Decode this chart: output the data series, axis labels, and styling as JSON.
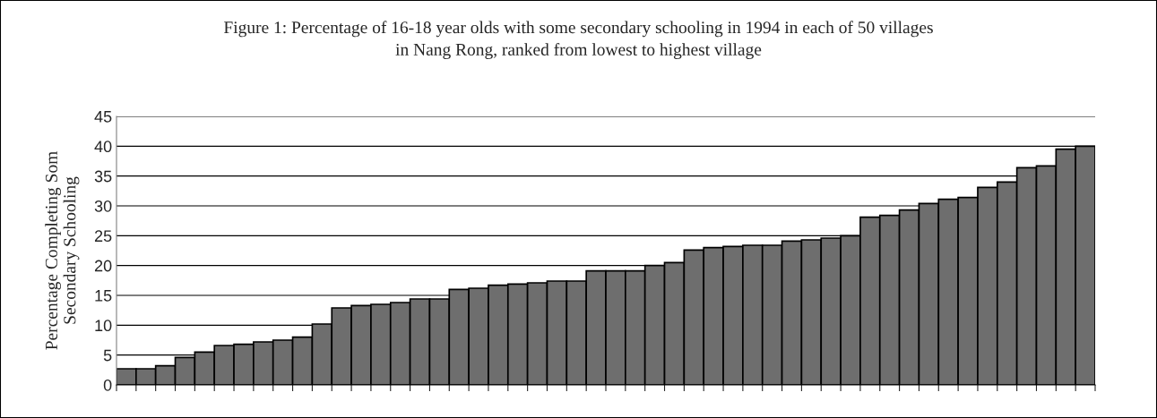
{
  "chart_data": {
    "type": "bar",
    "title": "Figure 1: Percentage of 16-18 year olds with some secondary schooling in 1994 in each of 50 villages\nin Nang Rong, ranked from lowest to highest village",
    "ylabel": "Percentage Completing Som\nSecondary Schooling",
    "categories": [
      null,
      null,
      null,
      null,
      null,
      null,
      null,
      null,
      null,
      null,
      null,
      null,
      null,
      null,
      null,
      null,
      null,
      null,
      null,
      null,
      null,
      null,
      null,
      null,
      null,
      null,
      null,
      null,
      null,
      null,
      null,
      null,
      null,
      null,
      null,
      null,
      null,
      null,
      null,
      null,
      null,
      null,
      null,
      null,
      null,
      null,
      null,
      null,
      null,
      null
    ],
    "values": [
      2.7,
      2.7,
      3.2,
      4.6,
      5.5,
      6.6,
      6.8,
      7.2,
      7.5,
      8.0,
      10.2,
      12.9,
      13.3,
      13.5,
      13.8,
      14.4,
      14.4,
      16.0,
      16.2,
      16.7,
      16.9,
      17.1,
      17.4,
      17.4,
      19.1,
      19.1,
      19.1,
      20.0,
      20.5,
      22.6,
      23.0,
      23.2,
      23.4,
      23.4,
      24.1,
      24.3,
      24.6,
      25.0,
      28.1,
      28.4,
      29.3,
      30.4,
      31.1,
      31.4,
      33.1,
      34.0,
      36.4,
      36.7,
      39.5,
      40.0
    ],
    "color": "#6e6e6e",
    "ylim": [
      0,
      45
    ],
    "yticks": [
      0,
      5,
      10,
      15,
      20,
      25,
      30,
      35,
      40,
      45
    ],
    "grid": "y",
    "tick_labels": "y"
  }
}
